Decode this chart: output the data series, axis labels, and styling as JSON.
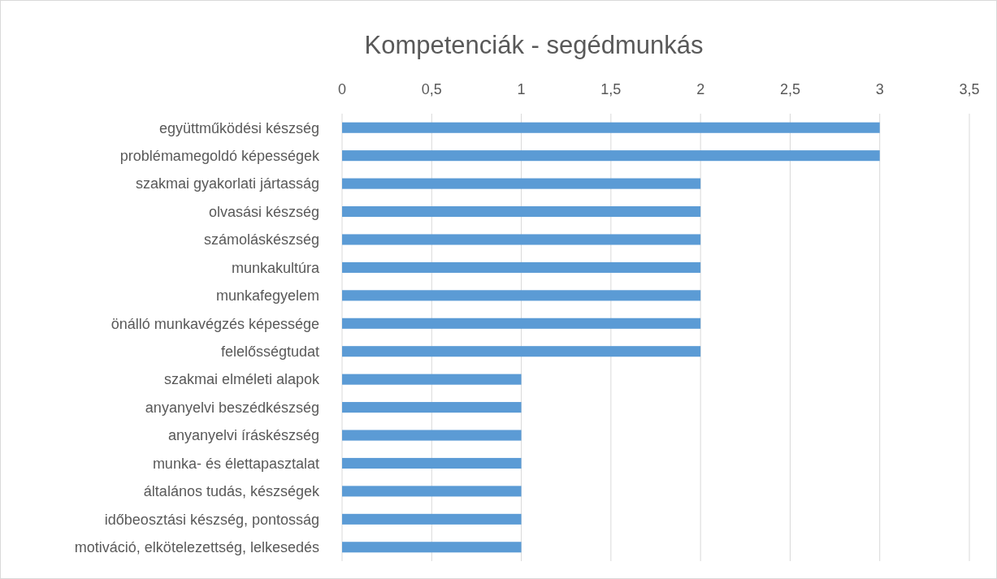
{
  "chart_data": {
    "type": "bar",
    "orientation": "horizontal",
    "title": "Kompetenciák - segédmunkás",
    "categories": [
      "együttműködési készség",
      "problémamegoldó képességek",
      "szakmai gyakorlati jártasság",
      "olvasási készség",
      "számoláskészség",
      "munkakultúra",
      "munkafegyelem",
      "önálló munkavégzés képessége",
      "felelősségtudat",
      "szakmai elméleti alapok",
      "anyanyelvi beszédkészség",
      "anyanyelvi íráskészség",
      "munka- és élettapasztalat",
      "általános tudás, készségek",
      "időbeosztási készség, pontosság",
      "motiváció, elkötelezettség, lelkesedés"
    ],
    "values": [
      3,
      3,
      2,
      2,
      2,
      2,
      2,
      2,
      2,
      1,
      1,
      1,
      1,
      1,
      1,
      1
    ],
    "color": "#5b9bd5",
    "xlim": [
      0,
      3.5
    ],
    "xticks": [
      0,
      {
        "value": 0.5,
        "label": "0,5"
      },
      1,
      {
        "value": 1.5,
        "label": "1,5"
      },
      2,
      {
        "value": 2.5,
        "label": "2,5"
      },
      3,
      {
        "value": 3.5,
        "label": "3,5"
      }
    ],
    "grid": "x"
  }
}
